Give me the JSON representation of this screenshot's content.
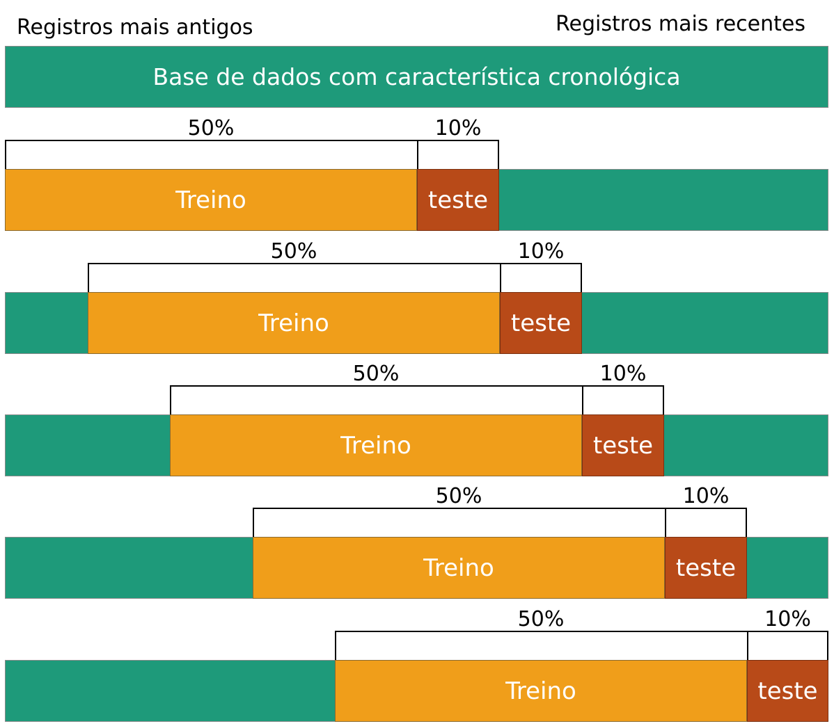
{
  "header": {
    "left": "Registros mais antigos",
    "right": "Registros mais recentes"
  },
  "base": {
    "title": "Base de dados com característica cronológica"
  },
  "windows": [
    {
      "train_label": "Treino",
      "test_label": "teste",
      "train_pct": "50%",
      "test_pct": "10%"
    },
    {
      "train_label": "Treino",
      "test_label": "teste",
      "train_pct": "50%",
      "test_pct": "10%"
    },
    {
      "train_label": "Treino",
      "test_label": "teste",
      "train_pct": "50%",
      "test_pct": "10%"
    },
    {
      "train_label": "Treino",
      "test_label": "teste",
      "train_pct": "50%",
      "test_pct": "10%"
    },
    {
      "train_label": "Treino",
      "test_label": "teste",
      "train_pct": "50%",
      "test_pct": "10%"
    }
  ],
  "colors": {
    "base": "#1e9a7a",
    "train": "#f09e1a",
    "test": "#b84a18"
  }
}
